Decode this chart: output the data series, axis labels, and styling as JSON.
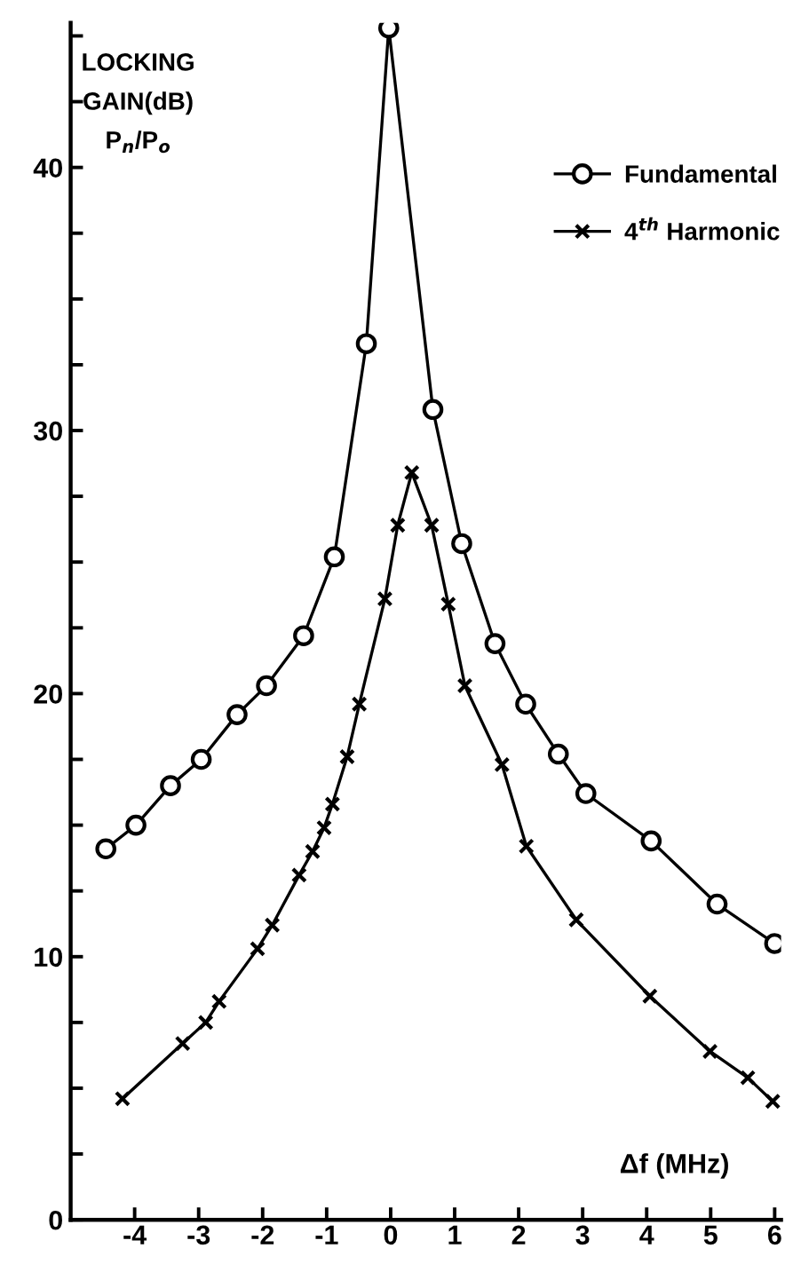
{
  "chart_data": {
    "type": "line",
    "ylabel": "LOCKING\nGAIN(dB)\nP$_{n}$/P$_{o}$",
    "xlabel": "Δf (MHz)",
    "xlim": [
      -5,
      6.1
    ],
    "xticks": [
      -4,
      -3,
      -2,
      -1,
      0,
      1,
      2,
      3,
      4,
      5,
      6
    ],
    "ylim": [
      0,
      45.5
    ],
    "yticks": [
      0,
      {
        "value": 2.5,
        "label": null
      },
      10,
      {
        "value": 5,
        "label": null
      },
      {
        "value": 7.5,
        "label": null
      },
      {
        "value": 12.5,
        "label": null
      },
      {
        "value": 15,
        "label": null
      },
      {
        "value": 17.5,
        "label": null
      },
      20,
      {
        "value": 22.5,
        "label": null
      },
      {
        "value": 25,
        "label": null
      },
      {
        "value": 27.5,
        "label": null
      },
      30,
      {
        "value": 32.5,
        "label": null
      },
      {
        "value": 35,
        "label": null
      },
      {
        "value": 37.5,
        "label": null
      },
      40,
      {
        "value": 42.5,
        "label": null
      },
      {
        "value": 45,
        "label": null
      }
    ],
    "grid": false,
    "legend": "top right",
    "line_style": "solid",
    "series": [
      {
        "name": "Fundamental",
        "color": "#000000",
        "marker": "circle",
        "x": [
          -4.45,
          -3.98,
          -3.44,
          -2.96,
          -2.4,
          -1.94,
          -1.36,
          -0.88,
          -0.38,
          -0.03,
          0.66,
          1.11,
          1.63,
          2.11,
          2.62,
          3.05,
          4.07,
          5.1,
          6.0
        ],
        "values": [
          14.1,
          15.0,
          16.5,
          17.5,
          19.2,
          20.3,
          22.2,
          25.2,
          33.3,
          45.3,
          30.8,
          25.7,
          21.9,
          19.6,
          17.7,
          16.2,
          14.4,
          12.0,
          10.5
        ]
      },
      {
        "name": "4$^{th}$ Harmonic",
        "color": "#000000",
        "marker": "cross",
        "x": [
          -4.19,
          -3.25,
          -2.89,
          -2.68,
          -2.08,
          -1.85,
          -1.43,
          -1.22,
          -1.04,
          -0.91,
          -0.68,
          -0.49,
          -0.09,
          0.11,
          0.33,
          0.64,
          0.9,
          1.16,
          1.74,
          2.12,
          2.9,
          4.05,
          4.99,
          5.58,
          5.97
        ],
        "values": [
          4.6,
          6.7,
          7.5,
          8.3,
          10.3,
          11.2,
          13.1,
          14.0,
          14.9,
          15.8,
          17.6,
          19.6,
          23.6,
          26.4,
          28.4,
          26.4,
          23.4,
          20.3,
          17.3,
          14.2,
          11.4,
          8.5,
          6.4,
          5.4,
          4.5
        ]
      }
    ]
  }
}
